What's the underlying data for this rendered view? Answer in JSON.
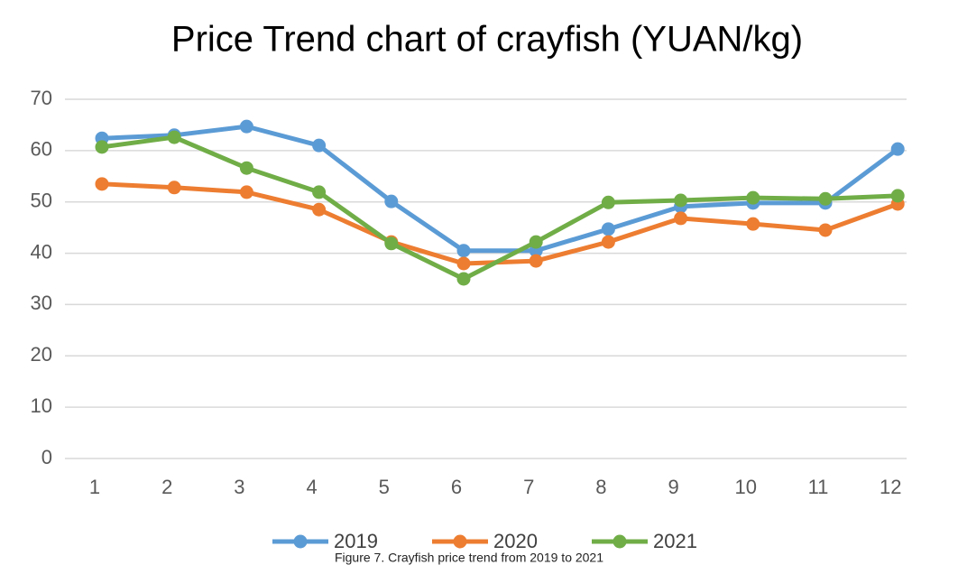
{
  "chart_data": {
    "type": "line",
    "title": "Price Trend chart of crayfish (YUAN/kg)",
    "caption": "Figure 7. Crayfish price trend from 2019 to 2021",
    "categories": [
      "1",
      "2",
      "3",
      "4",
      "5",
      "6",
      "7",
      "8",
      "9",
      "10",
      "11",
      "12"
    ],
    "series": [
      {
        "name": "2019",
        "color": "#5b9bd5",
        "values": [
          62.4,
          63.0,
          64.7,
          61.0,
          50.1,
          40.5,
          40.5,
          44.7,
          49.1,
          49.8,
          49.8,
          60.3
        ]
      },
      {
        "name": "2020",
        "color": "#ed7d31",
        "values": [
          53.5,
          52.8,
          51.9,
          48.5,
          42.2,
          38.0,
          38.5,
          42.2,
          46.8,
          45.7,
          44.5,
          49.6
        ]
      },
      {
        "name": "2021",
        "color": "#70ad47",
        "values": [
          60.7,
          62.6,
          56.6,
          51.9,
          41.9,
          35.0,
          42.2,
          49.9,
          50.3,
          50.8,
          50.6,
          51.2
        ]
      }
    ],
    "ylim": [
      0,
      70
    ],
    "yticks": [
      0,
      10,
      20,
      30,
      40,
      50,
      60,
      70
    ],
    "grid": true
  }
}
